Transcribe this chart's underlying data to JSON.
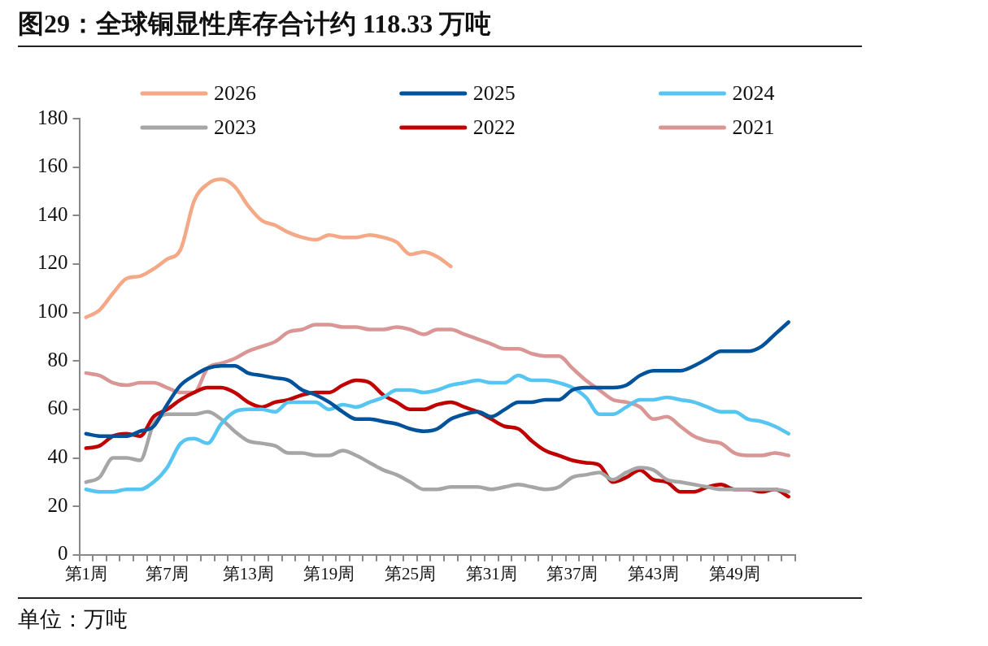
{
  "chart_data": {
    "type": "line",
    "title": "图29：全球铜显性库存合计约 118.33 万吨",
    "categories": [
      "第1周",
      null,
      null,
      null,
      null,
      null,
      "第7周",
      null,
      null,
      null,
      null,
      null,
      "第13周",
      null,
      null,
      null,
      null,
      null,
      "第19周",
      null,
      null,
      null,
      null,
      null,
      "第25周",
      null,
      null,
      null,
      null,
      null,
      "第31周",
      null,
      null,
      null,
      null,
      null,
      "第37周",
      null,
      null,
      null,
      null,
      null,
      "第43周",
      null,
      null,
      null,
      null,
      null,
      "第49周",
      null,
      null,
      null,
      null
    ],
    "series": [
      {
        "name": "2026",
        "color": "#f4a886",
        "values": [
          98,
          101,
          108,
          114,
          115,
          118,
          122,
          126,
          146,
          153,
          155,
          152,
          144,
          138,
          136,
          133,
          131,
          130,
          132,
          131,
          131,
          132,
          131,
          129,
          124,
          125,
          123,
          119,
          null,
          null,
          null,
          null,
          null,
          null,
          null,
          null,
          null,
          null,
          null,
          null,
          null,
          null,
          null,
          null,
          null,
          null,
          null,
          null,
          null,
          null,
          null,
          null,
          null
        ]
      },
      {
        "name": "2025",
        "color": "#00529b",
        "values": [
          50,
          49,
          49,
          49,
          51,
          53,
          62,
          70,
          74,
          77,
          78,
          78,
          75,
          74,
          73,
          72,
          68,
          66,
          63,
          59,
          56,
          56,
          55,
          54,
          52,
          51,
          52,
          56,
          58,
          59,
          57,
          60,
          63,
          63,
          64,
          64,
          68,
          69,
          69,
          69,
          70,
          74,
          76,
          76,
          76,
          78,
          81,
          84,
          84,
          84,
          86,
          91,
          96
        ]
      },
      {
        "name": "2024",
        "color": "#56c5f1",
        "values": [
          27,
          26,
          26,
          27,
          27,
          30,
          36,
          46,
          48,
          46,
          54,
          59,
          60,
          60,
          59,
          63,
          63,
          63,
          60,
          62,
          61,
          63,
          65,
          68,
          68,
          67,
          68,
          70,
          71,
          72,
          71,
          71,
          74,
          72,
          72,
          71,
          69,
          65,
          58,
          58,
          61,
          64,
          64,
          65,
          64,
          63,
          61,
          59,
          59,
          56,
          55,
          53,
          50
        ]
      },
      {
        "name": "2023",
        "color": "#a6a6a6",
        "values": [
          30,
          32,
          40,
          40,
          39,
          54,
          58,
          58,
          58,
          59,
          56,
          51,
          47,
          46,
          45,
          42,
          42,
          41,
          41,
          43,
          41,
          38,
          35,
          33,
          30,
          27,
          27,
          28,
          28,
          28,
          27,
          28,
          29,
          28,
          27,
          28,
          32,
          33,
          34,
          31,
          34,
          36,
          35,
          31,
          30,
          29,
          28,
          27,
          27,
          27,
          27,
          27,
          26
        ]
      },
      {
        "name": "2022",
        "color": "#c00000",
        "values": [
          44,
          45,
          49,
          50,
          49,
          57,
          60,
          64,
          67,
          69,
          69,
          67,
          63,
          61,
          63,
          64,
          66,
          67,
          67,
          70,
          72,
          71,
          66,
          63,
          60,
          60,
          62,
          63,
          61,
          59,
          56,
          53,
          52,
          47,
          43,
          41,
          39,
          38,
          37,
          30,
          32,
          35,
          31,
          30,
          26,
          26,
          28,
          29,
          27,
          27,
          26,
          27,
          24
        ]
      },
      {
        "name": "2021",
        "color": "#d99694",
        "values": [
          75,
          74,
          71,
          70,
          71,
          71,
          69,
          67,
          67,
          77,
          79,
          81,
          84,
          86,
          88,
          92,
          93,
          95,
          95,
          94,
          94,
          93,
          93,
          94,
          93,
          91,
          93,
          93,
          91,
          89,
          87,
          85,
          85,
          83,
          82,
          82,
          77,
          72,
          68,
          64,
          63,
          61,
          56,
          57,
          53,
          49,
          47,
          46,
          42,
          41,
          41,
          42,
          41
        ]
      }
    ],
    "ylim": [
      0,
      180
    ],
    "yticks": [
      0,
      20,
      40,
      60,
      80,
      100,
      120,
      140,
      160,
      180
    ],
    "grid": false,
    "legend": "top",
    "marker": "none",
    "line_style": "solid",
    "annotations": [
      "单位：万吨"
    ]
  }
}
